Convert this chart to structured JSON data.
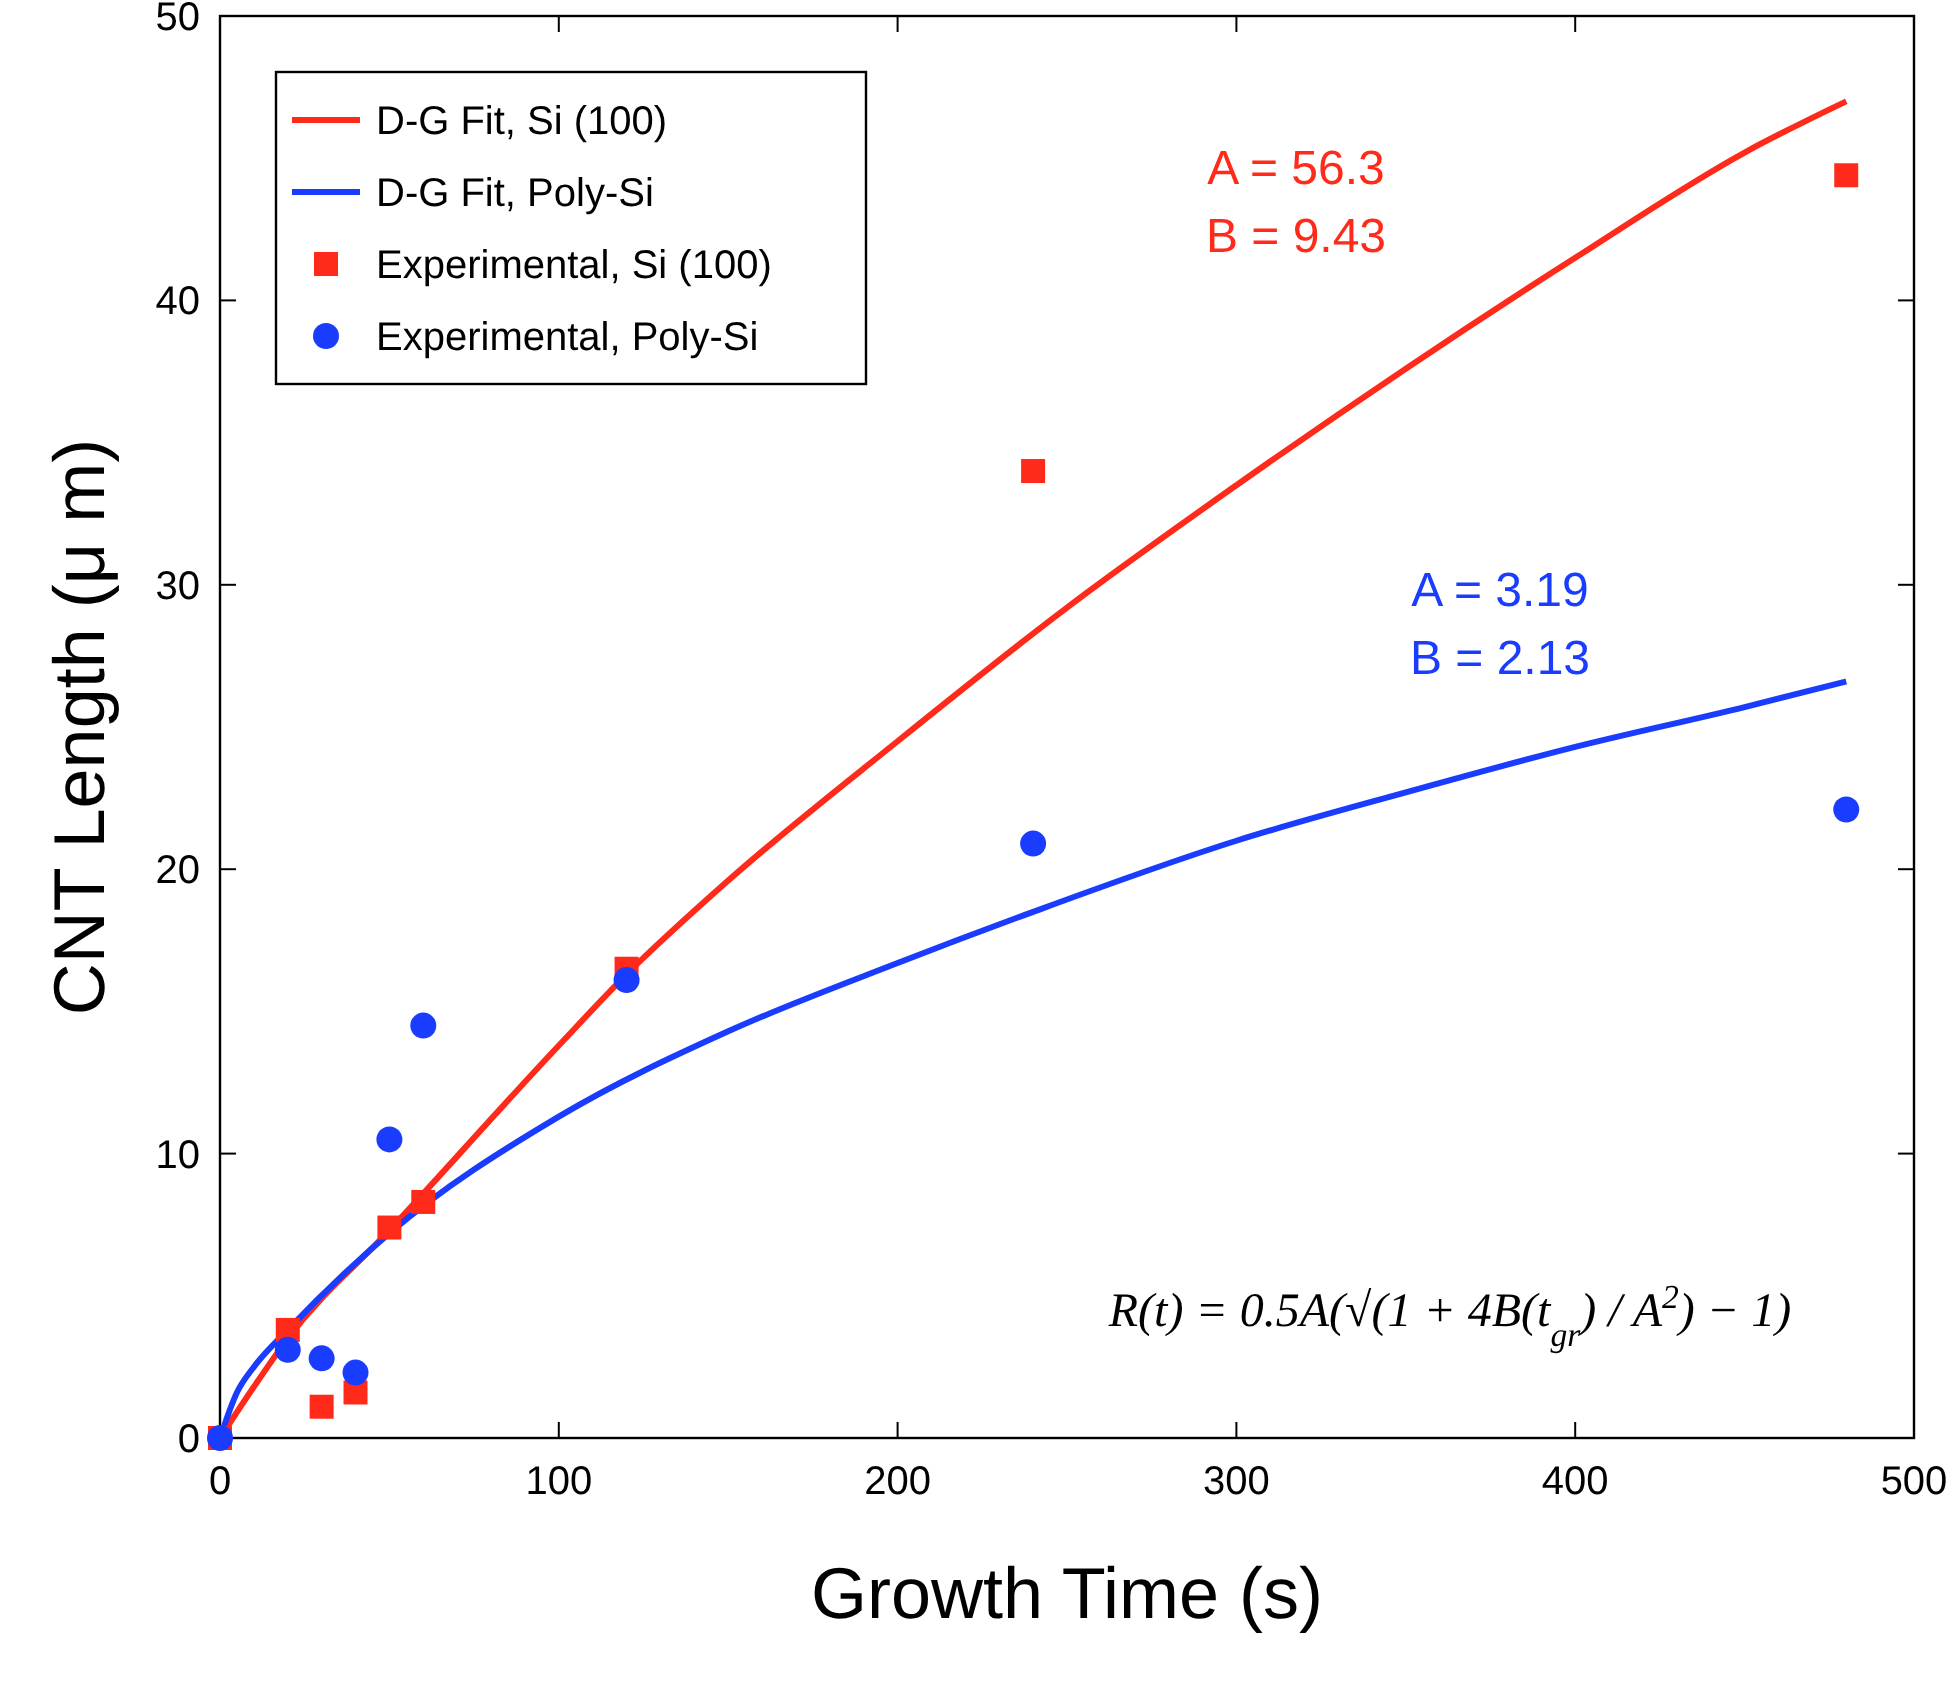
{
  "chart_data": {
    "type": "scatter",
    "xlabel": "Growth Time (s)",
    "ylabel": "CNT Length (μ m)",
    "xlim": [
      0,
      500
    ],
    "ylim": [
      0,
      50
    ],
    "xticks": [
      0,
      100,
      200,
      300,
      400,
      500
    ],
    "yticks": [
      0,
      10,
      20,
      30,
      40,
      50
    ],
    "grid": false,
    "legend": "top left",
    "series": [
      {
        "name": "D-G Fit, Si (100)",
        "type": "line",
        "color": "#ff2a1a",
        "line_style": "solid",
        "x": [
          0,
          10,
          20,
          50,
          100,
          120,
          150,
          200,
          250,
          300,
          350,
          400,
          450,
          480
        ],
        "values": [
          0,
          1.8,
          3.5,
          7.3,
          13.8,
          16.3,
          19.6,
          24.5,
          29.2,
          33.5,
          37.6,
          41.5,
          45.2,
          47.0
        ]
      },
      {
        "name": "D-G Fit, Poly-Si",
        "type": "line",
        "color": "#1a3cff",
        "line_style": "solid",
        "x": [
          0,
          5,
          10,
          20,
          50,
          100,
          150,
          200,
          240,
          300,
          350,
          400,
          450,
          480
        ],
        "values": [
          0,
          1.6,
          2.5,
          3.8,
          7.2,
          11.3,
          14.3,
          16.7,
          18.5,
          21.0,
          22.7,
          24.3,
          25.7,
          26.6
        ]
      },
      {
        "name": "Experimental, Si (100)",
        "color": "#ff2a1a",
        "marker": "square",
        "x": [
          0,
          20,
          30,
          40,
          50,
          60,
          120,
          240,
          480
        ],
        "values": [
          0,
          3.8,
          1.1,
          1.6,
          7.4,
          8.3,
          16.5,
          34.0,
          44.4
        ]
      },
      {
        "name": "Experimental, Poly-Si",
        "color": "#1a3cff",
        "marker": "circle",
        "x": [
          0,
          20,
          30,
          40,
          50,
          60,
          120,
          240,
          480
        ],
        "values": [
          0,
          3.1,
          2.8,
          2.3,
          10.5,
          14.5,
          16.1,
          20.9,
          22.1
        ]
      }
    ],
    "annotations": [
      "A = 56.3",
      "B = 9.43",
      "A = 3.19",
      "B = 2.13",
      "R(t) = 0.5A(√(1 + 4B(t$_{gr}$) / A$^{2}$) − 1)"
    ]
  }
}
